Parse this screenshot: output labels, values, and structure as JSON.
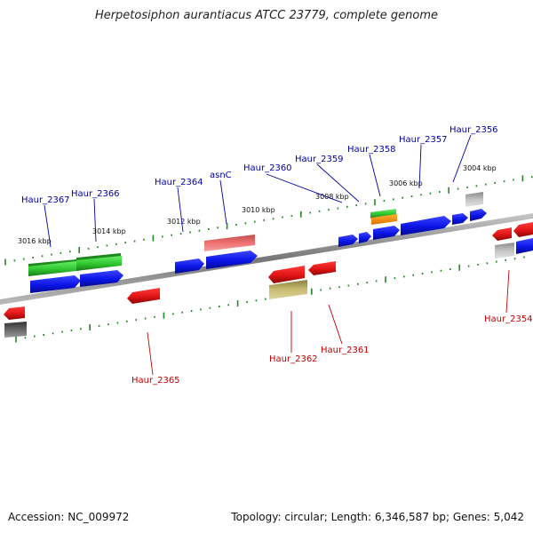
{
  "title": "Herpetosiphon aurantiacus ATCC 23779, complete genome",
  "accession_text": "Accession: NC_009972",
  "topology_text": "Topology: circular; Length: 6,346,587 bp; Genes: 5,042",
  "colors": {
    "forward_label": "#0000a0",
    "reverse_label": "#c00000",
    "forward_gene": "#0a14e6",
    "reverse_gene": "#e01414",
    "rna_green": "#33cc33",
    "backbone": "#808080",
    "tick": "#228822"
  },
  "ruler_labels": {
    "outer": [
      "3016 kbp",
      "3014 kbp",
      "3012 kbp",
      "3010 kbp",
      "3008 kbp",
      "3006 kbp",
      "3004 kbp"
    ]
  },
  "forward_gene_labels": [
    "Haur_2367",
    "Haur_2366",
    "Haur_2364",
    "asnC",
    "Haur_2360",
    "Haur_2359",
    "Haur_2358",
    "Haur_2357",
    "Haur_2356"
  ],
  "reverse_gene_labels": [
    "Haur_2365",
    "Haur_2362",
    "Haur_2361",
    "Haur_2354"
  ]
}
